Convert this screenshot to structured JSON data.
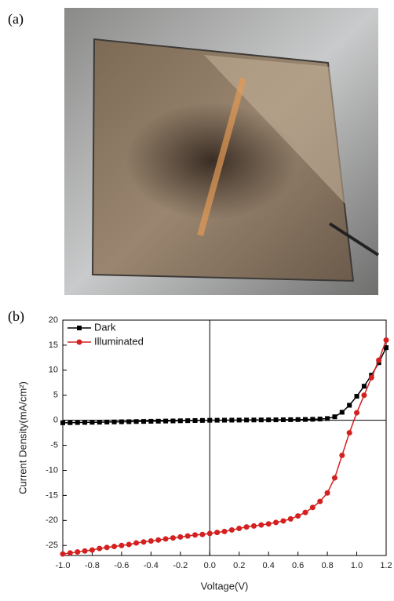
{
  "panels": {
    "a": "(a)",
    "b": "(b)"
  },
  "chart_data": {
    "type": "line",
    "xlabel": "Voltage(V)",
    "ylabel": "Current Density(mA/cm²)",
    "x": [
      -1.0,
      -0.95,
      -0.9,
      -0.85,
      -0.8,
      -0.75,
      -0.7,
      -0.65,
      -0.6,
      -0.55,
      -0.5,
      -0.45,
      -0.4,
      -0.35,
      -0.3,
      -0.25,
      -0.2,
      -0.15,
      -0.1,
      -0.05,
      0.0,
      0.05,
      0.1,
      0.15,
      0.2,
      0.25,
      0.3,
      0.35,
      0.4,
      0.45,
      0.5,
      0.55,
      0.6,
      0.65,
      0.7,
      0.75,
      0.8,
      0.85,
      0.9,
      0.95,
      1.0,
      1.05,
      1.1,
      1.15,
      1.2
    ],
    "series": [
      {
        "name": "Dark",
        "color": "#000000",
        "marker": "square",
        "values": [
          -0.5,
          -0.48,
          -0.45,
          -0.43,
          -0.4,
          -0.38,
          -0.35,
          -0.33,
          -0.3,
          -0.28,
          -0.25,
          -0.23,
          -0.2,
          -0.18,
          -0.15,
          -0.13,
          -0.1,
          -0.08,
          -0.05,
          -0.03,
          0,
          0.01,
          0.02,
          0.03,
          0.04,
          0.05,
          0.06,
          0.07,
          0.08,
          0.09,
          0.1,
          0.12,
          0.14,
          0.16,
          0.2,
          0.25,
          0.35,
          0.7,
          1.6,
          3,
          4.8,
          6.8,
          9,
          11.5,
          14.5
        ]
      },
      {
        "name": "Illuminated",
        "color": "#d42020",
        "marker": "circle",
        "values": [
          -26.7,
          -26.5,
          -26.3,
          -26.1,
          -25.9,
          -25.6,
          -25.4,
          -25.2,
          -25.0,
          -24.8,
          -24.5,
          -24.3,
          -24.1,
          -23.9,
          -23.7,
          -23.5,
          -23.3,
          -23.1,
          -22.9,
          -22.8,
          -22.6,
          -22.4,
          -22.2,
          -21.9,
          -21.6,
          -21.3,
          -21.1,
          -20.9,
          -20.7,
          -20.4,
          -20.1,
          -19.7,
          -19.1,
          -18.4,
          -17.4,
          -16.2,
          -14.5,
          -11.5,
          -7,
          -2.5,
          1.5,
          5,
          8.5,
          12,
          16
        ]
      }
    ],
    "xlim": [
      -1.0,
      1.2
    ],
    "ylim": [
      -27,
      20
    ],
    "xticks": [
      {
        "value": -1.0,
        "label": "-1.0"
      },
      {
        "value": -0.8,
        "label": "-0.8"
      },
      {
        "value": -0.6,
        "label": "-0.6"
      },
      {
        "value": -0.4,
        "label": "-0.4"
      },
      {
        "value": -0.2,
        "label": "-0.2"
      },
      {
        "value": 0,
        "label": "0.0"
      },
      {
        "value": 0.2,
        "label": "0.2"
      },
      {
        "value": 0.4,
        "label": "0.4"
      },
      {
        "value": 0.6,
        "label": "0.6"
      },
      {
        "value": 0.8,
        "label": "0.8"
      },
      {
        "value": 1.0,
        "label": "1.0"
      },
      {
        "value": 1.2,
        "label": "1.2"
      }
    ],
    "yticks": [
      20,
      15,
      10,
      5,
      0,
      -5,
      -10,
      -15,
      -20,
      -25
    ],
    "legend": "upper-left"
  }
}
